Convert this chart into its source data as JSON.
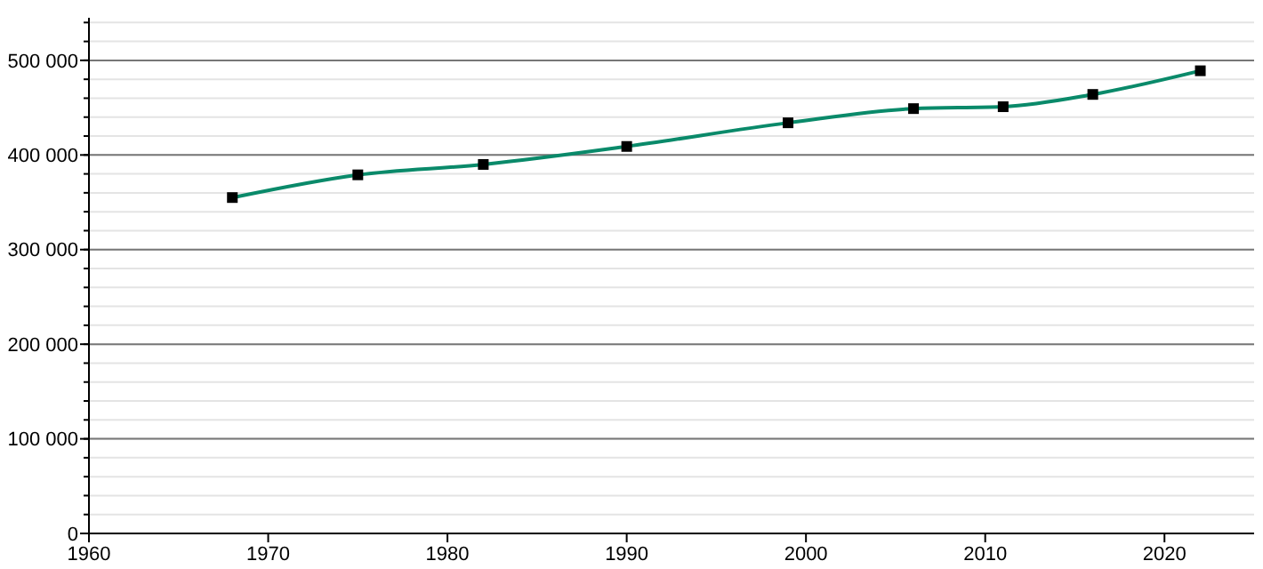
{
  "chart_data": {
    "type": "line",
    "x": [
      1968,
      1975,
      1982,
      1990,
      1999,
      2006,
      2011,
      2016,
      2022
    ],
    "series": [
      {
        "color": "#0a8a6a",
        "values": [
          355000,
          379000,
          390000,
          409000,
          434000,
          449000,
          451000,
          464000,
          489000
        ]
      }
    ],
    "xlim": [
      1960,
      2025
    ],
    "xticks": [
      1960,
      1970,
      1980,
      1990,
      2000,
      2010,
      2020
    ],
    "ylim": [
      0,
      545000
    ],
    "yticks": [
      {
        "value": 0,
        "label": "0"
      },
      {
        "value": 100000,
        "label": "100 000"
      },
      {
        "value": 200000,
        "label": "200 000"
      },
      {
        "value": 300000,
        "label": "300 000"
      },
      {
        "value": 400000,
        "label": "400 000"
      },
      {
        "value": 500000,
        "label": "500 000"
      }
    ],
    "grid": true,
    "marker": "square",
    "line_style": "solid"
  }
}
